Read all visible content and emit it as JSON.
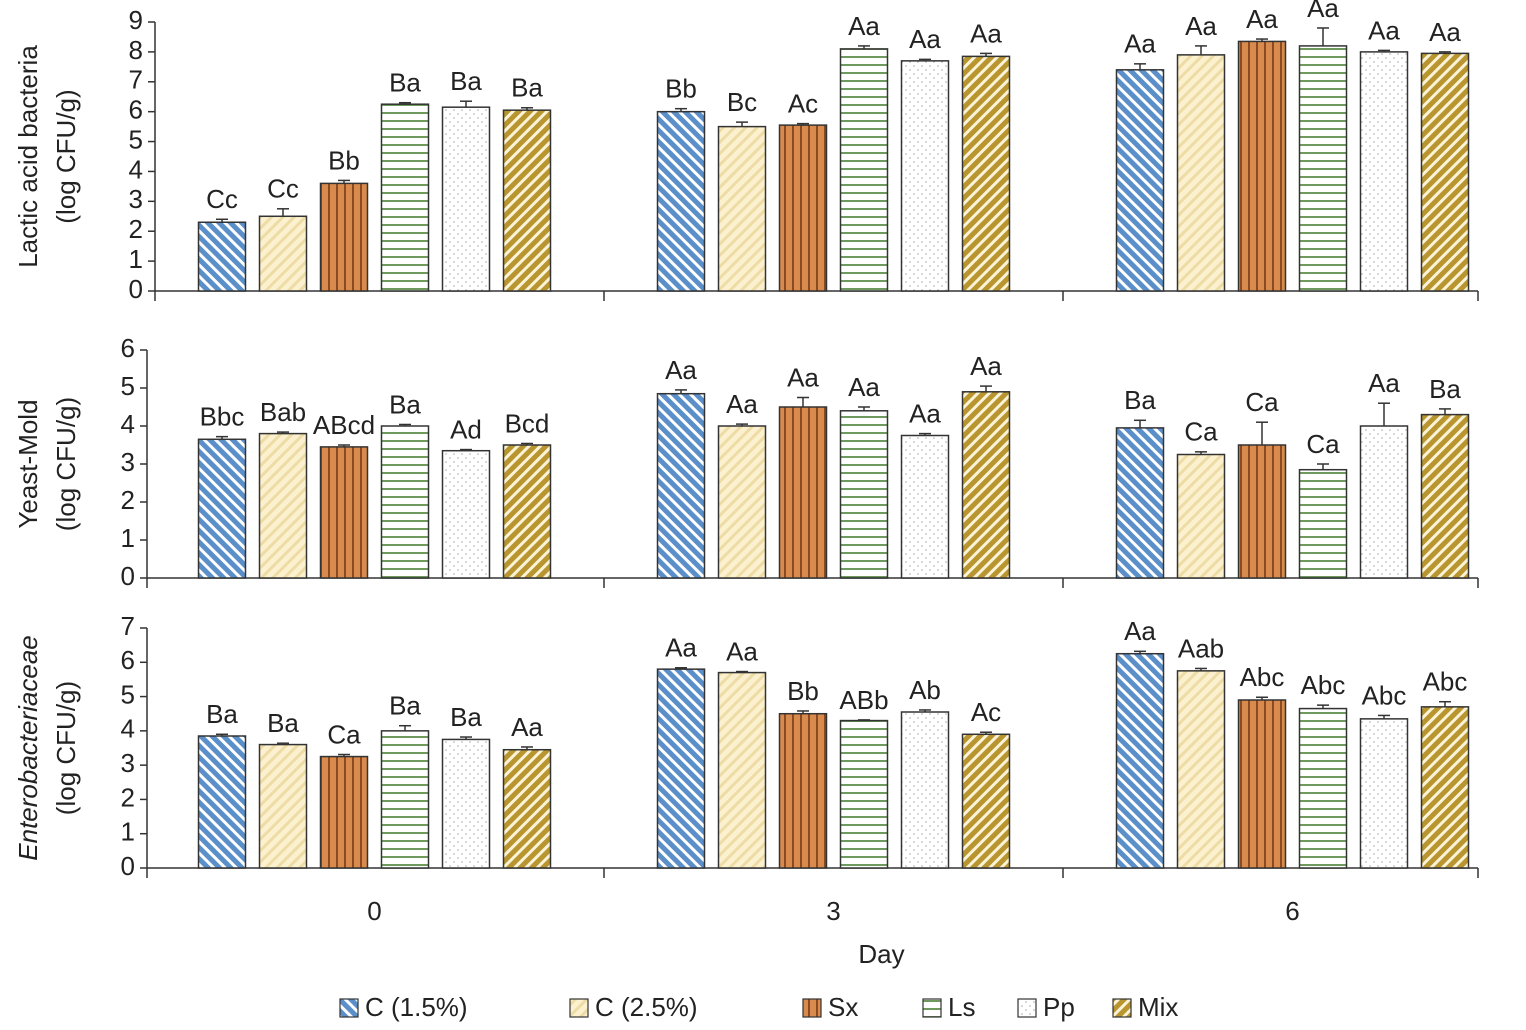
{
  "series_styles": [
    {
      "name": "C (1.5%)",
      "color": "#5b8fc9",
      "stripe": "#ffffff",
      "pattern": "back-diagonal"
    },
    {
      "name": "C (2.5%)",
      "color": "#fcf1cf",
      "stripe": "#eedca6",
      "pattern": "diagonal"
    },
    {
      "name": "Sx",
      "color": "#d98b4e",
      "stripe": "#8a4a22",
      "pattern": "vertical"
    },
    {
      "name": "Ls",
      "color": "#ffffff",
      "stripe": "#6e9a5e",
      "pattern": "horizontal"
    },
    {
      "name": "Pp",
      "color": "#ffffff",
      "stripe": "#aaaaaa",
      "pattern": "dots"
    },
    {
      "name": "Mix",
      "color": "#b8952e",
      "stripe": "#fbf3d8",
      "pattern": "diagonal"
    }
  ],
  "chart_data": [
    {
      "type": "bar",
      "y_label": [
        "Lactic acid bacteria",
        "(log CFU/g)"
      ],
      "y_label_style": "normal",
      "ylim": [
        0,
        9
      ],
      "yticks": [
        0,
        1,
        2,
        3,
        4,
        5,
        6,
        7,
        8,
        9
      ],
      "series": [
        {
          "values": [
            2.3,
            6.0,
            7.4
          ],
          "errors": [
            0.1,
            0.1,
            0.2
          ],
          "labels": [
            "Cc",
            "Bb",
            "Aa"
          ]
        },
        {
          "values": [
            2.5,
            5.5,
            7.9
          ],
          "errors": [
            0.25,
            0.15,
            0.3
          ],
          "labels": [
            "Cc",
            "Bc",
            "Aa"
          ]
        },
        {
          "values": [
            3.6,
            5.55,
            8.35
          ],
          "errors": [
            0.1,
            0.05,
            0.08
          ],
          "labels": [
            "Bb",
            "Ac",
            "Aa"
          ]
        },
        {
          "values": [
            6.25,
            8.1,
            8.2
          ],
          "errors": [
            0.05,
            0.1,
            0.6
          ],
          "labels": [
            "Ba",
            "Aa",
            "Aa"
          ]
        },
        {
          "values": [
            6.15,
            7.7,
            8.0
          ],
          "errors": [
            0.2,
            0.05,
            0.05
          ],
          "labels": [
            "Ba",
            "Aa",
            "Aa"
          ]
        },
        {
          "values": [
            6.05,
            7.85,
            7.95
          ],
          "errors": [
            0.08,
            0.1,
            0.05
          ],
          "labels": [
            "Ba",
            "Aa",
            "Aa"
          ]
        }
      ]
    },
    {
      "type": "bar",
      "y_label": [
        "Yeast-Mold",
        "(log CFU/g)"
      ],
      "y_label_style": "normal",
      "ylim": [
        0,
        6
      ],
      "yticks": [
        0,
        1,
        2,
        3,
        4,
        5,
        6
      ],
      "series": [
        {
          "values": [
            3.65,
            4.85,
            3.95
          ],
          "errors": [
            0.07,
            0.1,
            0.2
          ],
          "labels": [
            "Bbc",
            "Aa",
            "Ba"
          ]
        },
        {
          "values": [
            3.8,
            4.0,
            3.25
          ],
          "errors": [
            0.04,
            0.05,
            0.07
          ],
          "labels": [
            "Bab",
            "Aa",
            "Ca"
          ]
        },
        {
          "values": [
            3.45,
            4.5,
            3.5
          ],
          "errors": [
            0.05,
            0.25,
            0.6
          ],
          "labels": [
            "ABcd",
            "Aa",
            "Ca"
          ]
        },
        {
          "values": [
            4.0,
            4.4,
            2.85
          ],
          "errors": [
            0.04,
            0.1,
            0.15
          ],
          "labels": [
            "Ba",
            "Aa",
            "Ca"
          ]
        },
        {
          "values": [
            3.35,
            3.75,
            4.0
          ],
          "errors": [
            0.03,
            0.05,
            0.6
          ],
          "labels": [
            "Ad",
            "Aa",
            "Aa"
          ]
        },
        {
          "values": [
            3.5,
            4.9,
            4.3
          ],
          "errors": [
            0.04,
            0.15,
            0.15
          ],
          "labels": [
            "Bcd",
            "Aa",
            "Ba"
          ]
        }
      ]
    },
    {
      "type": "bar",
      "y_label": [
        "Enterobacteriaceae",
        "(log CFU/g)"
      ],
      "y_label_style": "italic-first",
      "ylim": [
        0,
        7
      ],
      "yticks": [
        0,
        1,
        2,
        3,
        4,
        5,
        6,
        7
      ],
      "categories": [
        "0",
        "3",
        "6"
      ],
      "x_label": "Day",
      "series": [
        {
          "values": [
            3.85,
            5.8,
            6.25
          ],
          "errors": [
            0.05,
            0.04,
            0.07
          ],
          "labels": [
            "Ba",
            "Aa",
            "Aa"
          ]
        },
        {
          "values": [
            3.6,
            5.7,
            5.75
          ],
          "errors": [
            0.04,
            0.03,
            0.07
          ],
          "labels": [
            "Ba",
            "Aa",
            "Aab"
          ]
        },
        {
          "values": [
            3.25,
            4.5,
            4.9
          ],
          "errors": [
            0.06,
            0.08,
            0.08
          ],
          "labels": [
            "Ca",
            "Bb",
            "Abc"
          ]
        },
        {
          "values": [
            4.0,
            4.3,
            4.65
          ],
          "errors": [
            0.15,
            0.02,
            0.1
          ],
          "labels": [
            "Ba",
            "ABb",
            "Abc"
          ]
        },
        {
          "values": [
            3.75,
            4.55,
            4.35
          ],
          "errors": [
            0.07,
            0.06,
            0.1
          ],
          "labels": [
            "Ba",
            "Ab",
            "Abc"
          ]
        },
        {
          "values": [
            3.45,
            3.9,
            4.7
          ],
          "errors": [
            0.08,
            0.06,
            0.15
          ],
          "labels": [
            "Aa",
            "Ac",
            "Abc"
          ]
        }
      ]
    }
  ]
}
